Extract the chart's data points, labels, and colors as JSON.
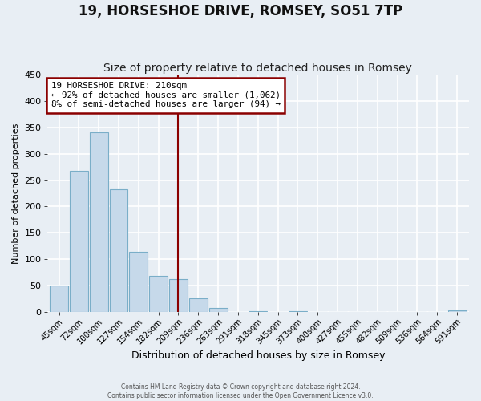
{
  "title": "19, HORSESHOE DRIVE, ROMSEY, SO51 7TP",
  "subtitle": "Size of property relative to detached houses in Romsey",
  "xlabel": "Distribution of detached houses by size in Romsey",
  "ylabel": "Number of detached properties",
  "bar_labels": [
    "45sqm",
    "72sqm",
    "100sqm",
    "127sqm",
    "154sqm",
    "182sqm",
    "209sqm",
    "236sqm",
    "263sqm",
    "291sqm",
    "318sqm",
    "345sqm",
    "373sqm",
    "400sqm",
    "427sqm",
    "455sqm",
    "482sqm",
    "509sqm",
    "536sqm",
    "564sqm",
    "591sqm"
  ],
  "bar_values": [
    50,
    267,
    340,
    232,
    114,
    68,
    62,
    25,
    7,
    0,
    2,
    0,
    2,
    0,
    0,
    0,
    0,
    0,
    0,
    0,
    3
  ],
  "bar_color": "#c6d9ea",
  "bar_edge_color": "#7aaec8",
  "property_line_x": 6,
  "property_line_color": "#8b0000",
  "ylim": [
    0,
    450
  ],
  "yticks": [
    0,
    50,
    100,
    150,
    200,
    250,
    300,
    350,
    400,
    450
  ],
  "annotation_title": "19 HORSESHOE DRIVE: 210sqm",
  "annotation_line1": "← 92% of detached houses are smaller (1,062)",
  "annotation_line2": "8% of semi-detached houses are larger (94) →",
  "annotation_box_color": "#8b0000",
  "footer_line1": "Contains HM Land Registry data © Crown copyright and database right 2024.",
  "footer_line2": "Contains public sector information licensed under the Open Government Licence v3.0.",
  "background_color": "#e8eef4",
  "grid_color": "#ffffff",
  "title_fontsize": 12,
  "subtitle_fontsize": 10
}
